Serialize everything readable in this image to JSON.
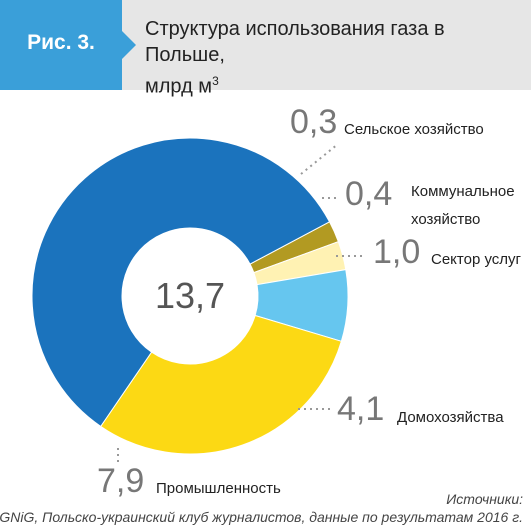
{
  "figure_label": "Рис. 3.",
  "title_main": "Структура использования газа в Польше,",
  "title_unit": "млрд м",
  "title_unit_sup": "3",
  "sources_title": "Источники:",
  "sources_text": "PGNiG, Польско-украинский клуб журналистов, данные по результатам 2016 г.",
  "colors": {
    "header_bg": "#e6e6e6",
    "tab_bg": "#3a9fd9",
    "leader": "#999999",
    "value_text": "#777777",
    "center_text": "#555555"
  },
  "chart_data": {
    "type": "pie",
    "donut": true,
    "total": "13,7",
    "slices": [
      {
        "label": "Сельское хозяйство",
        "value": 0.3,
        "value_label": "0,3",
        "color": "#b29a22"
      },
      {
        "label": "Коммунальное хозяйство",
        "value": 0.4,
        "value_label": "0,4",
        "color": "#fff2b3"
      },
      {
        "label": "Сектор услуг",
        "value": 1.0,
        "value_label": "1,0",
        "color": "#66c6ef"
      },
      {
        "label": "Домохозяйства",
        "value": 4.1,
        "value_label": "4,1",
        "color": "#fcd914"
      },
      {
        "label": "Промышленность",
        "value": 7.9,
        "value_label": "7,9",
        "color": "#1b73bd"
      }
    ]
  }
}
